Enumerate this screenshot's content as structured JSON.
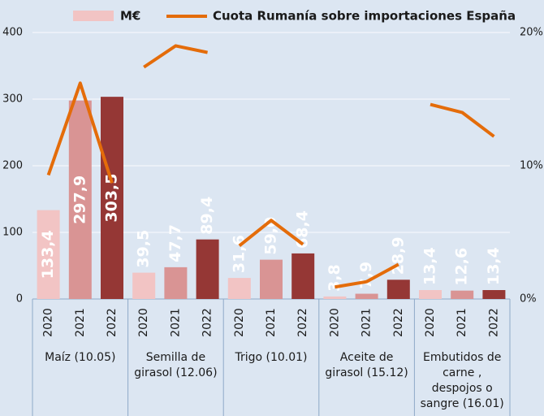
{
  "chart_data": {
    "type": "bar",
    "groups": [
      [
        "Maíz (10.05)"
      ],
      [
        "Semilla de",
        "girasol (12.06)"
      ],
      [
        "Trigo (10.01)"
      ],
      [
        "Aceite de",
        "girasol (15.12)"
      ],
      [
        "Embutidos de",
        "carne ,",
        "despojos o",
        "sangre (16.01)"
      ]
    ],
    "years": [
      "2020",
      "2021",
      "2022"
    ],
    "series": [
      {
        "name": "M€",
        "color": "#f2c4c4",
        "year_colors": [
          "#f2c4c4",
          "#d99494",
          "#953735"
        ],
        "values": [
          133.4,
          297.9,
          303.5,
          39.5,
          47.7,
          89.4,
          31.6,
          59.0,
          68.4,
          3.8,
          7.9,
          28.9,
          13.4,
          12.6,
          13.4
        ],
        "value_labels": [
          "133,4",
          "297,9",
          "303,5",
          "39,5",
          "47,7",
          "89,4",
          "31,6",
          "59,0",
          "68,4",
          "3,8",
          "7,9",
          "28,9",
          "13,4",
          "12,6",
          "13,4"
        ]
      },
      {
        "name": "Cuota Rumanía sobre importaciones España",
        "type": "line",
        "axis": "y2",
        "color": "#e46c0a",
        "values": [
          9.3,
          16.2,
          8.7,
          17.4,
          19.0,
          18.5,
          4.0,
          5.9,
          4.1,
          0.9,
          1.3,
          2.6,
          14.6,
          14.0,
          12.2
        ]
      }
    ],
    "ylim": [
      0,
      400
    ],
    "yticks": [
      0,
      100,
      200,
      300,
      400
    ],
    "y2lim": [
      0,
      20
    ],
    "y2ticks": [
      {
        "value": 0,
        "label": "0%"
      },
      {
        "value": 10,
        "label": "10%"
      },
      {
        "value": 20,
        "label": "20%"
      }
    ],
    "grid": true
  }
}
